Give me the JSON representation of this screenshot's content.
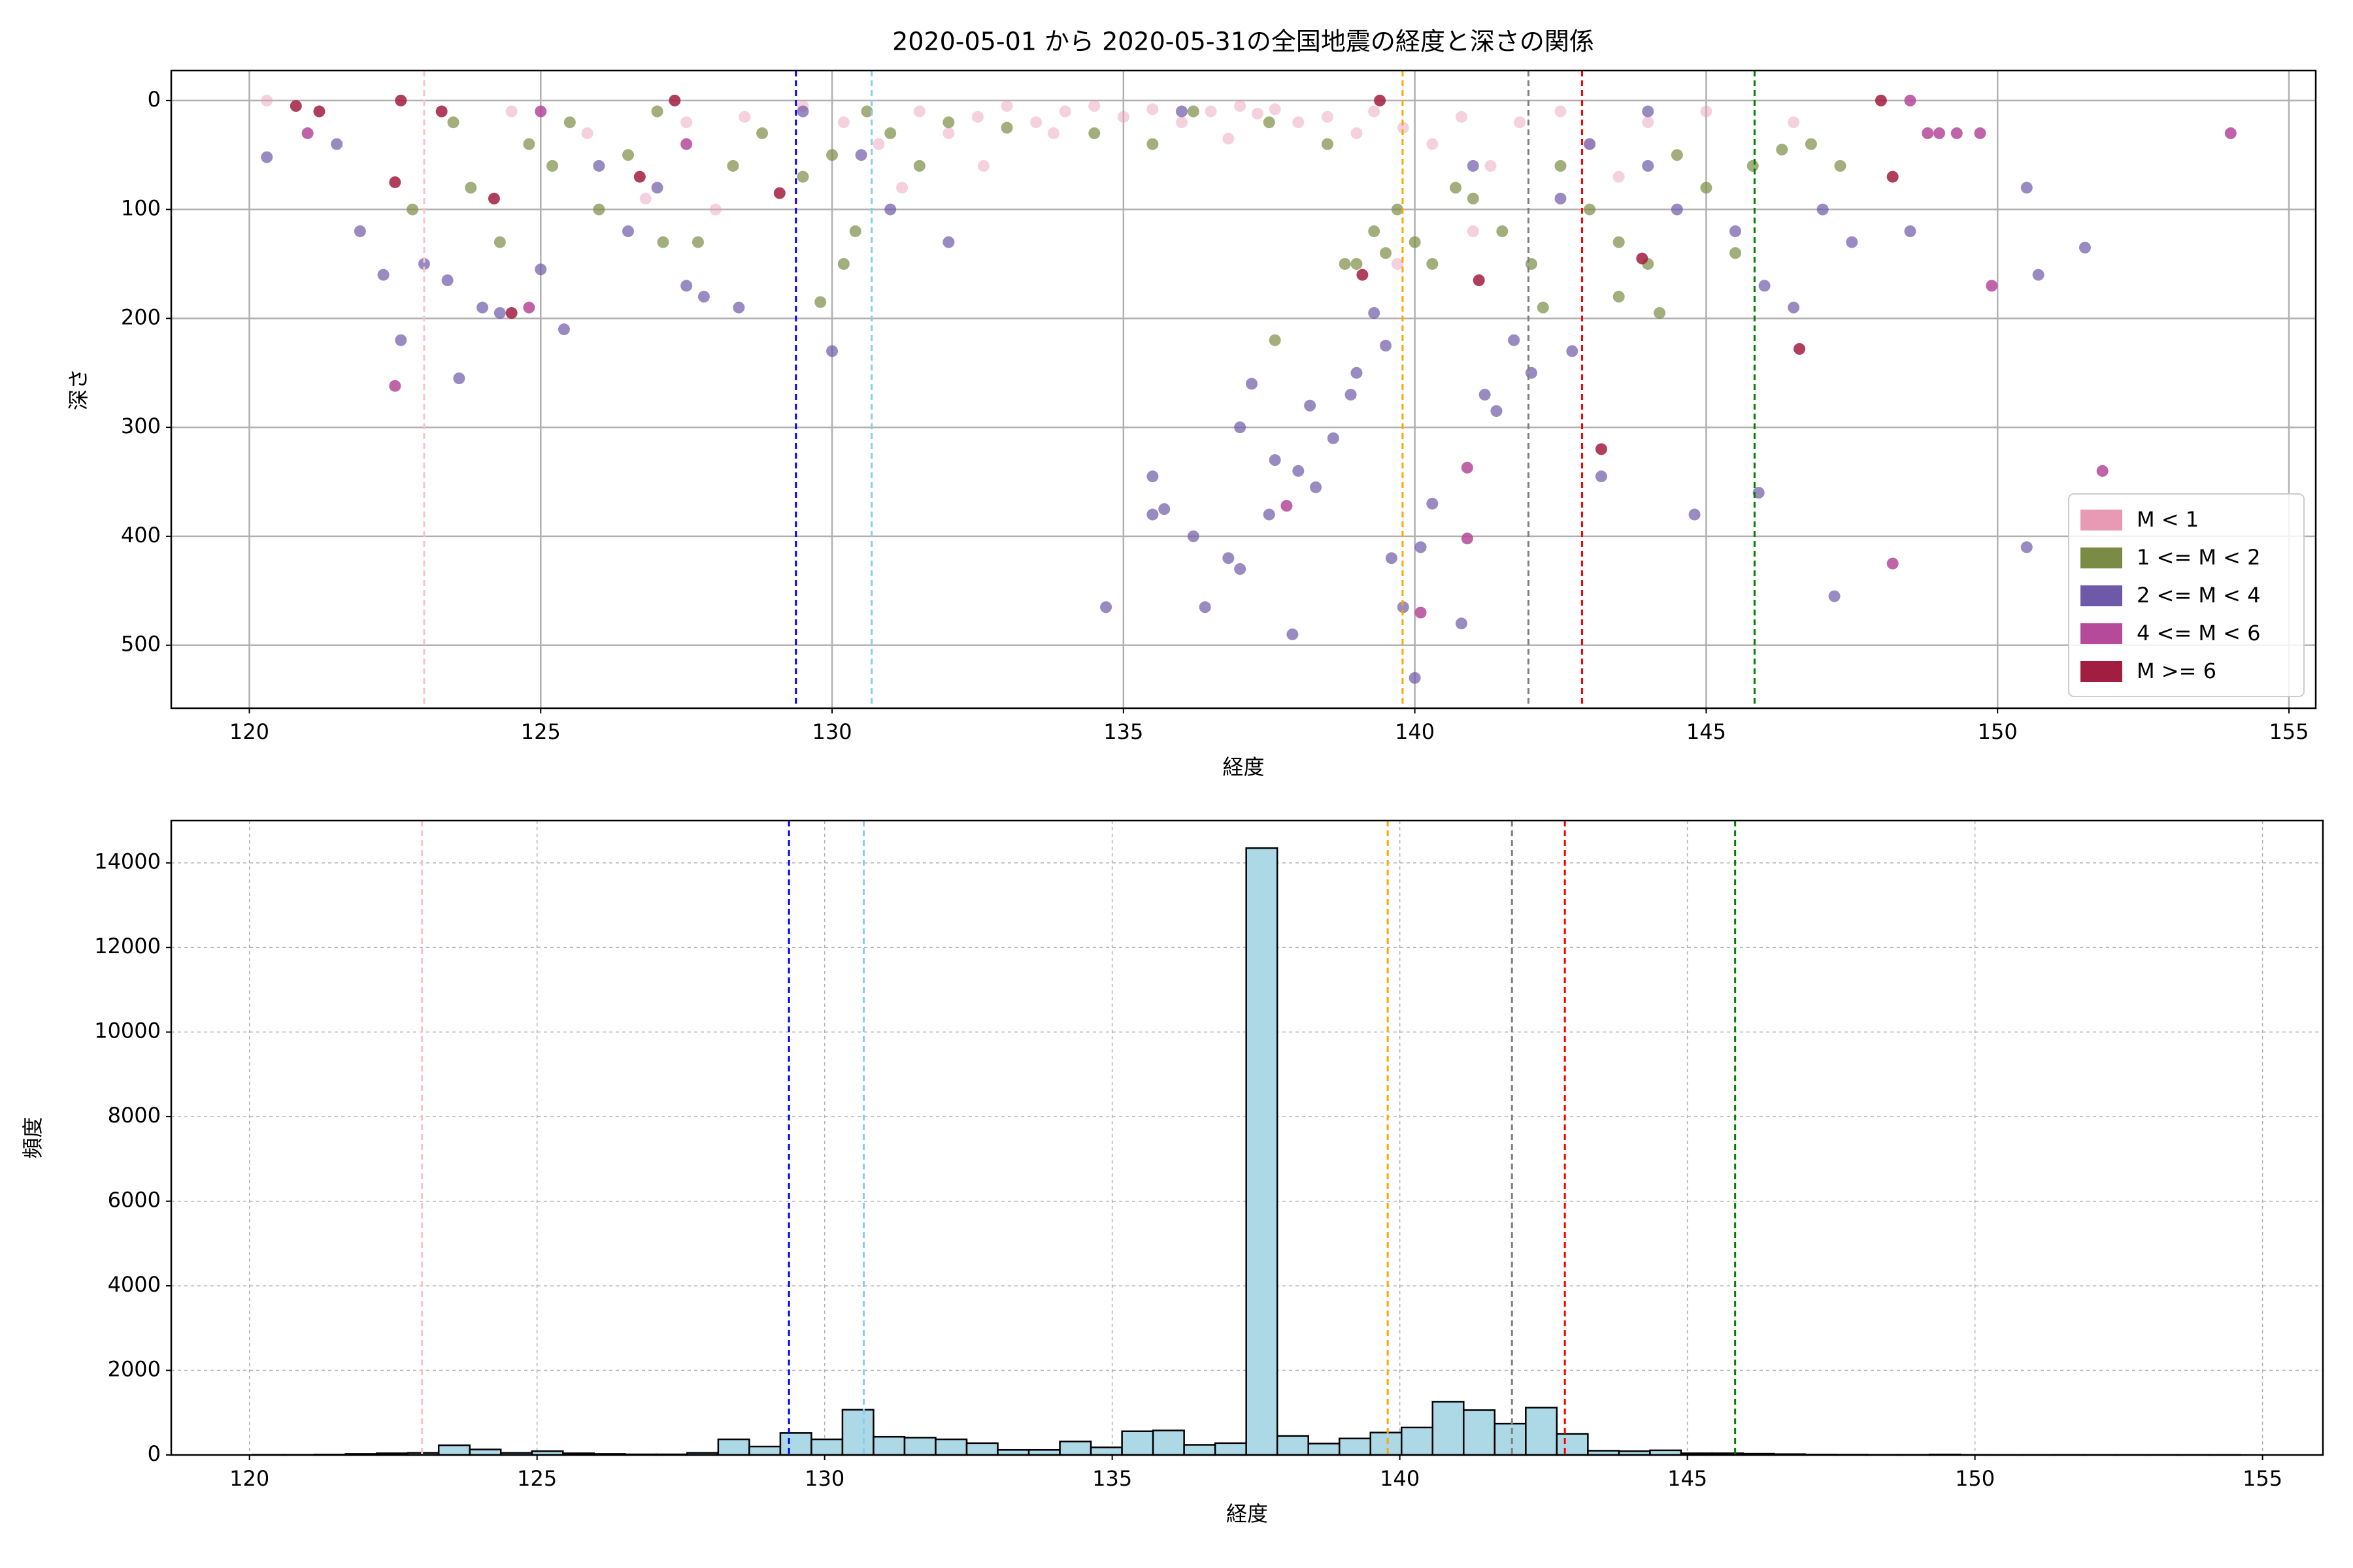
{
  "chart_data": [
    {
      "type": "scatter",
      "title": "2020-05-01 から 2020-05-31の全国地震の経度と深さの関係",
      "xlabel": "経度",
      "ylabel": "深さ",
      "xlim": [
        118.66,
        155.46
      ],
      "ylim": [
        557.8,
        -27.5
      ],
      "xticks": [
        120,
        125,
        130,
        135,
        140,
        145,
        150,
        155
      ],
      "yticks": [
        0,
        100,
        200,
        300,
        400,
        500
      ],
      "grid": true,
      "grid_style": "solid",
      "legend": "lower right",
      "series": [
        {
          "name": "M < 1",
          "color": "#e899b4",
          "x": [
            120.3,
            124.5,
            125.8,
            127.5,
            128.5,
            129.5,
            130.2,
            130.8,
            131.5,
            132,
            132.5,
            133,
            133.5,
            134,
            134.5,
            135,
            135.5,
            136,
            136.5,
            137,
            137.3,
            137.6,
            138,
            138.5,
            139,
            139.3,
            139.8,
            140.3,
            140.8,
            141.3,
            141.8,
            142.5,
            143,
            143.5,
            144,
            145,
            146.5,
            131.2,
            132.6,
            128,
            126.8,
            133.8,
            136.8,
            141,
            139.7
          ],
          "y": [
            0,
            10,
            30,
            20,
            15,
            5,
            20,
            40,
            10,
            30,
            15,
            5,
            20,
            10,
            5,
            15,
            8,
            20,
            10,
            5,
            12,
            8,
            20,
            15,
            30,
            10,
            25,
            40,
            15,
            60,
            20,
            10,
            40,
            70,
            20,
            10,
            20,
            80,
            60,
            100,
            90,
            30,
            35,
            120,
            150
          ]
        },
        {
          "name": "1 <= M < 2",
          "color": "#7a8b45",
          "x": [
            123.5,
            123.8,
            124.3,
            124.8,
            125.2,
            125.5,
            126,
            126.5,
            127,
            127.7,
            128.3,
            128.8,
            129.5,
            130,
            130.2,
            130.4,
            130.6,
            131,
            131.5,
            132,
            133,
            134.5,
            135.5,
            136.2,
            137.5,
            137.6,
            138.5,
            139,
            139.3,
            139.7,
            140,
            140.3,
            140.7,
            141,
            141.5,
            142,
            142.5,
            143,
            143.5,
            144,
            144.5,
            145,
            145.5,
            145.8,
            146.3,
            146.8,
            147.3,
            138.8,
            139.5,
            142.2,
            143.5,
            144.2,
            129.8,
            127.1,
            122.8
          ],
          "y": [
            20,
            80,
            130,
            40,
            60,
            20,
            100,
            50,
            10,
            130,
            60,
            30,
            70,
            50,
            150,
            120,
            10,
            30,
            60,
            20,
            25,
            30,
            40,
            10,
            20,
            220,
            40,
            150,
            120,
            100,
            130,
            150,
            80,
            90,
            120,
            150,
            60,
            100,
            130,
            150,
            50,
            80,
            140,
            60,
            45,
            40,
            60,
            150,
            140,
            190,
            180,
            195,
            185,
            130,
            100
          ]
        },
        {
          "name": "2 <= M < 4",
          "color": "#6e58a8",
          "x": [
            120.3,
            121.5,
            121.9,
            122.3,
            122.6,
            123,
            123.4,
            123.6,
            124,
            124.3,
            125,
            125.4,
            126,
            126.5,
            127,
            127.5,
            127.8,
            128.4,
            129.5,
            130,
            130.5,
            131,
            132,
            134.7,
            135.5,
            135.5,
            135.7,
            136.2,
            136.4,
            136.8,
            137,
            137,
            137.2,
            137.5,
            137.6,
            137.9,
            138,
            138.2,
            138.3,
            138.6,
            138.9,
            139,
            139.3,
            139.5,
            139.6,
            139.8,
            140.1,
            140,
            140.3,
            140.8,
            141.2,
            141.4,
            141.7,
            142,
            142.7,
            143.2,
            144,
            144.5,
            144.8,
            145.5,
            145.9,
            146,
            146.5,
            147,
            147.2,
            147.5,
            148.5,
            150.5,
            150.7,
            150.5,
            151.5,
            141,
            143,
            142.5,
            144,
            136
          ],
          "y": [
            52,
            40,
            120,
            160,
            220,
            150,
            165,
            255,
            190,
            195,
            155,
            210,
            60,
            120,
            80,
            170,
            180,
            190,
            10,
            230,
            50,
            100,
            130,
            465,
            345,
            380,
            375,
            400,
            465,
            420,
            430,
            300,
            260,
            380,
            330,
            490,
            340,
            280,
            355,
            310,
            270,
            250,
            195,
            225,
            420,
            465,
            410,
            530,
            370,
            480,
            270,
            285,
            220,
            250,
            230,
            345,
            60,
            100,
            380,
            120,
            360,
            170,
            190,
            100,
            455,
            130,
            120,
            80,
            160,
            410,
            135,
            60,
            40,
            90,
            10,
            10
          ]
        },
        {
          "name": "4 <= M < 6",
          "color": "#b5499a",
          "x": [
            122.5,
            121,
            124.8,
            125,
            137.8,
            140.1,
            140.9,
            140.9,
            148.2,
            149,
            149.3,
            149.7,
            149.9,
            151.8,
            154,
            148.8,
            148.5,
            127.5
          ],
          "y": [
            262,
            30,
            190,
            10,
            372,
            470,
            337,
            402,
            425,
            30,
            30,
            30,
            170,
            340,
            30,
            30,
            0,
            40
          ]
        },
        {
          "name": "M >= 6",
          "color": "#a21d42",
          "x": [
            120.8,
            121.2,
            122.5,
            122.6,
            123.3,
            124.2,
            124.5,
            126.7,
            127.3,
            129.1,
            139.4,
            139.1,
            141.1,
            143.2,
            143.9,
            146.6,
            148.2,
            148
          ],
          "y": [
            5,
            10,
            75,
            0,
            10,
            90,
            195,
            70,
            0,
            85,
            0,
            160,
            165,
            320,
            145,
            228,
            70,
            0
          ]
        }
      ],
      "vlines": [
        {
          "x": 123.0,
          "color": "pink"
        },
        {
          "x": 129.38,
          "color": "blue"
        },
        {
          "x": 130.68,
          "color": "skyblue"
        },
        {
          "x": 139.79,
          "color": "orange"
        },
        {
          "x": 141.95,
          "color": "gray"
        },
        {
          "x": 142.87,
          "color": "red"
        },
        {
          "x": 145.83,
          "color": "green"
        }
      ]
    },
    {
      "type": "histogram",
      "xlabel": "経度",
      "ylabel": "頻度",
      "xlim": [
        118.64,
        156.05
      ],
      "ylim": [
        0,
        15000
      ],
      "xticks": [
        120,
        125,
        130,
        135,
        140,
        145,
        150,
        155
      ],
      "yticks": [
        0,
        2000,
        4000,
        6000,
        8000,
        10000,
        12000,
        14000
      ],
      "grid": true,
      "grid_style": "dashed",
      "color": "#add8e6",
      "edgecolor": "#000000",
      "bins": [
        120.05,
        120.59,
        121.13,
        121.67,
        122.21,
        122.75,
        123.29,
        123.83,
        124.37,
        124.91,
        125.45,
        125.99,
        126.53,
        127.07,
        127.61,
        128.15,
        128.69,
        129.23,
        129.77,
        130.31,
        130.85,
        131.39,
        131.93,
        132.47,
        133.01,
        133.55,
        134.09,
        134.63,
        135.17,
        135.71,
        136.25,
        136.79,
        137.33,
        137.87,
        138.41,
        138.95,
        139.49,
        140.03,
        140.57,
        141.11,
        141.65,
        142.19,
        142.73,
        143.27,
        143.81,
        144.35,
        144.89,
        145.43,
        145.97,
        146.51,
        147.05,
        147.59,
        148.13,
        148.67,
        149.21,
        149.75,
        150.29,
        150.83,
        151.37,
        151.91,
        152.45,
        152.99,
        153.53,
        154.07,
        154.61
      ],
      "counts": [
        5,
        5,
        10,
        25,
        40,
        50,
        230,
        130,
        50,
        90,
        40,
        25,
        15,
        15,
        50,
        370,
        200,
        520,
        370,
        1070,
        430,
        410,
        370,
        280,
        120,
        120,
        320,
        180,
        560,
        580,
        240,
        280,
        14350,
        450,
        270,
        390,
        530,
        650,
        1260,
        1060,
        740,
        1120,
        500,
        100,
        90,
        110,
        40,
        40,
        30,
        20,
        10,
        8,
        5,
        5,
        12,
        3,
        2,
        2,
        3,
        1,
        1,
        1,
        1,
        2
      ],
      "vlines": [
        {
          "x": 123.0,
          "color": "pink"
        },
        {
          "x": 129.38,
          "color": "blue"
        },
        {
          "x": 130.68,
          "color": "skyblue"
        },
        {
          "x": 139.79,
          "color": "orange"
        },
        {
          "x": 141.95,
          "color": "gray"
        },
        {
          "x": 142.87,
          "color": "red"
        },
        {
          "x": 145.83,
          "color": "green"
        }
      ]
    }
  ]
}
